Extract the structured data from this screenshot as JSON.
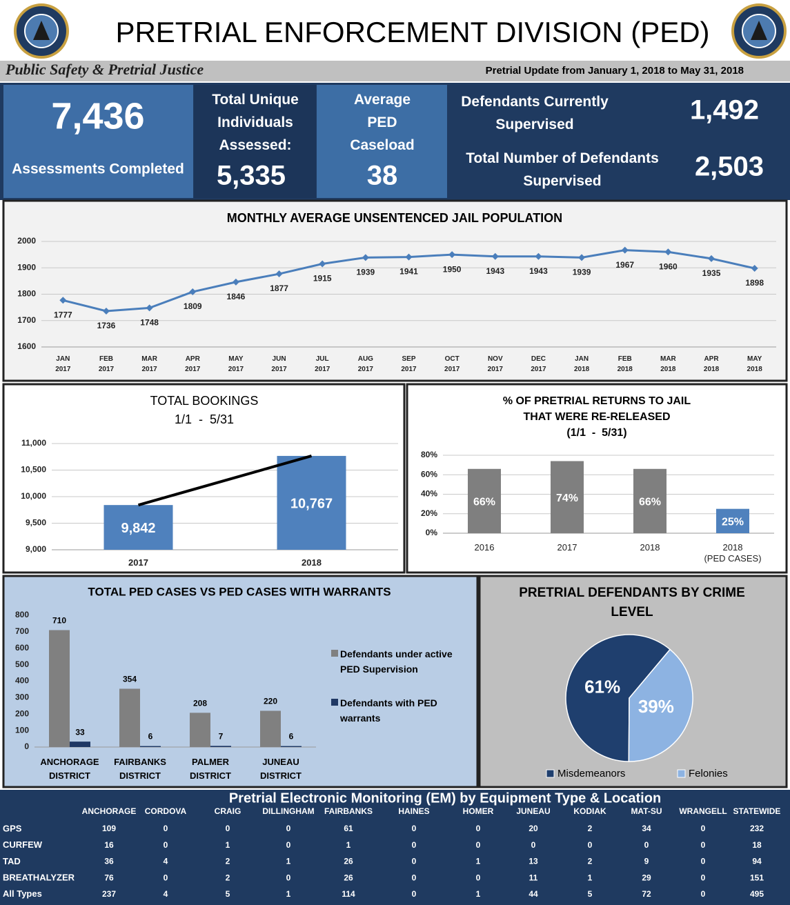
{
  "header": {
    "title": "PRETRIAL ENFORCEMENT DIVISION (PED)",
    "tagline": "Public Safety & Pretrial Justice",
    "update": "Pretrial Update from January 1, 2018 to May 31, 2018"
  },
  "kpis": {
    "assessments": {
      "value": "7,436",
      "label": "Assessments Completed"
    },
    "unique": {
      "label": "Total Unique Individuals Assessed:",
      "value": "5,335"
    },
    "caseload": {
      "label": "Average PED Caseload",
      "value": "38"
    },
    "current": {
      "label": "Defendants Currently Supervised",
      "value": "1,492"
    },
    "total": {
      "label": "Total Number of Defendants Supervised",
      "value": "2,503"
    }
  },
  "chart_data": [
    {
      "type": "line",
      "title": "MONTHLY AVERAGE UNSENTENCED JAIL POPULATION",
      "categories": [
        "JAN 2017",
        "FEB 2017",
        "MAR 2017",
        "APR 2017",
        "MAY 2017",
        "JUN 2017",
        "JUL 2017",
        "AUG 2017",
        "SEP 2017",
        "OCT 2017",
        "NOV 2017",
        "DEC 2017",
        "JAN 2018",
        "FEB 2018",
        "MAR 2018",
        "APR 2018",
        "MAY 2018"
      ],
      "values": [
        1777,
        1736,
        1748,
        1809,
        1846,
        1877,
        1915,
        1939,
        1941,
        1950,
        1943,
        1943,
        1939,
        1967,
        1960,
        1935,
        1898
      ],
      "ylim": [
        1600,
        2000
      ],
      "yticks": [
        1600,
        1700,
        1800,
        1900,
        2000
      ],
      "color": "#4a7ebb",
      "grid": true
    },
    {
      "type": "bar",
      "title": "TOTAL BOOKINGS",
      "subtitle": "1/1  -  5/31",
      "categories": [
        "2017",
        "2018"
      ],
      "values": [
        9842,
        10767
      ],
      "value_labels": [
        "9,842",
        "10,767"
      ],
      "ylim": [
        9000,
        11000
      ],
      "yticks": [
        {
          "value": 9000,
          "label": "9,000"
        },
        {
          "value": 9500,
          "label": "9,500"
        },
        {
          "value": 10000,
          "label": "10,000"
        },
        {
          "value": 10500,
          "label": "10,500"
        },
        {
          "value": 11000,
          "label": "11,000"
        }
      ],
      "color": "#4f81bd",
      "grid": true,
      "trendline": true
    },
    {
      "type": "bar",
      "title": "% OF PRETRIAL RETURNS TO JAIL THAT WERE RE-RELEASED",
      "subtitle": "(1/1  -  5/31)",
      "categories": [
        "2016",
        "2017",
        "2018",
        "2018\n(PED CASES)"
      ],
      "values": [
        66,
        74,
        66,
        25
      ],
      "value_labels": [
        "66%",
        "74%",
        "66%",
        "25%"
      ],
      "colors": [
        "#7f7f7f",
        "#7f7f7f",
        "#7f7f7f",
        "#4f81bd"
      ],
      "ylim": [
        0,
        80
      ],
      "yticks": [
        {
          "value": 0,
          "label": "0%"
        },
        {
          "value": 20,
          "label": "20%"
        },
        {
          "value": 40,
          "label": "40%"
        },
        {
          "value": 60,
          "label": "60%"
        },
        {
          "value": 80,
          "label": "80%"
        }
      ],
      "grid": true
    },
    {
      "type": "grouped_bar",
      "title": "TOTAL PED CASES VS PED CASES WITH WARRANTS",
      "categories": [
        "ANCHORAGE DISTRICT",
        "FAIRBANKS DISTRICT",
        "PALMER DISTRICT",
        "JUNEAU DISTRICT"
      ],
      "series": [
        {
          "name": "Defendants under active PED Supervision",
          "color": "#808080",
          "values": [
            710,
            354,
            208,
            220
          ]
        },
        {
          "name": "Defendants with PED warrants",
          "color": "#1f3864",
          "values": [
            33,
            6,
            7,
            6
          ]
        }
      ],
      "ylim": [
        0,
        800
      ],
      "yticks": [
        0,
        100,
        200,
        300,
        400,
        500,
        600,
        700,
        800
      ],
      "grid": false,
      "legend": "right"
    },
    {
      "type": "pie",
      "title": "PRETRIAL DEFENDANTS BY CRIME LEVEL",
      "categories": [
        "Misdemeanors",
        "Felonies"
      ],
      "values": [
        61,
        39
      ],
      "value_labels": [
        "61%",
        "39%"
      ],
      "colors": [
        "#1f3f6e",
        "#8db3e2"
      ],
      "legend": "bottom"
    }
  ],
  "table": {
    "title": "Pretrial Electronic Monitoring (EM) by Equipment Type & Location",
    "columns": [
      "ANCHORAGE",
      "CORDOVA",
      "CRAIG",
      "DILLINGHAM",
      "FAIRBANKS",
      "HAINES",
      "HOMER",
      "JUNEAU",
      "KODIAK",
      "MAT-SU",
      "WRANGELL",
      "STATEWIDE"
    ],
    "rows": [
      {
        "label": "GPS",
        "values": [
          "109",
          "0",
          "0",
          "0",
          "61",
          "0",
          "0",
          "20",
          "2",
          "34",
          "0",
          "232"
        ]
      },
      {
        "label": "CURFEW",
        "values": [
          "16",
          "0",
          "1",
          "0",
          "1",
          "0",
          "0",
          "0",
          "0",
          "0",
          "0",
          "18"
        ]
      },
      {
        "label": "TAD",
        "values": [
          "36",
          "4",
          "2",
          "1",
          "26",
          "0",
          "1",
          "13",
          "2",
          "9",
          "0",
          "94"
        ]
      },
      {
        "label": "BREATHALYZER",
        "values": [
          "76",
          "0",
          "2",
          "0",
          "26",
          "0",
          "0",
          "11",
          "1",
          "29",
          "0",
          "151"
        ]
      },
      {
        "label": "All Types",
        "values": [
          "237",
          "4",
          "5",
          "1",
          "114",
          "0",
          "1",
          "44",
          "5",
          "72",
          "0",
          "495"
        ]
      }
    ]
  }
}
